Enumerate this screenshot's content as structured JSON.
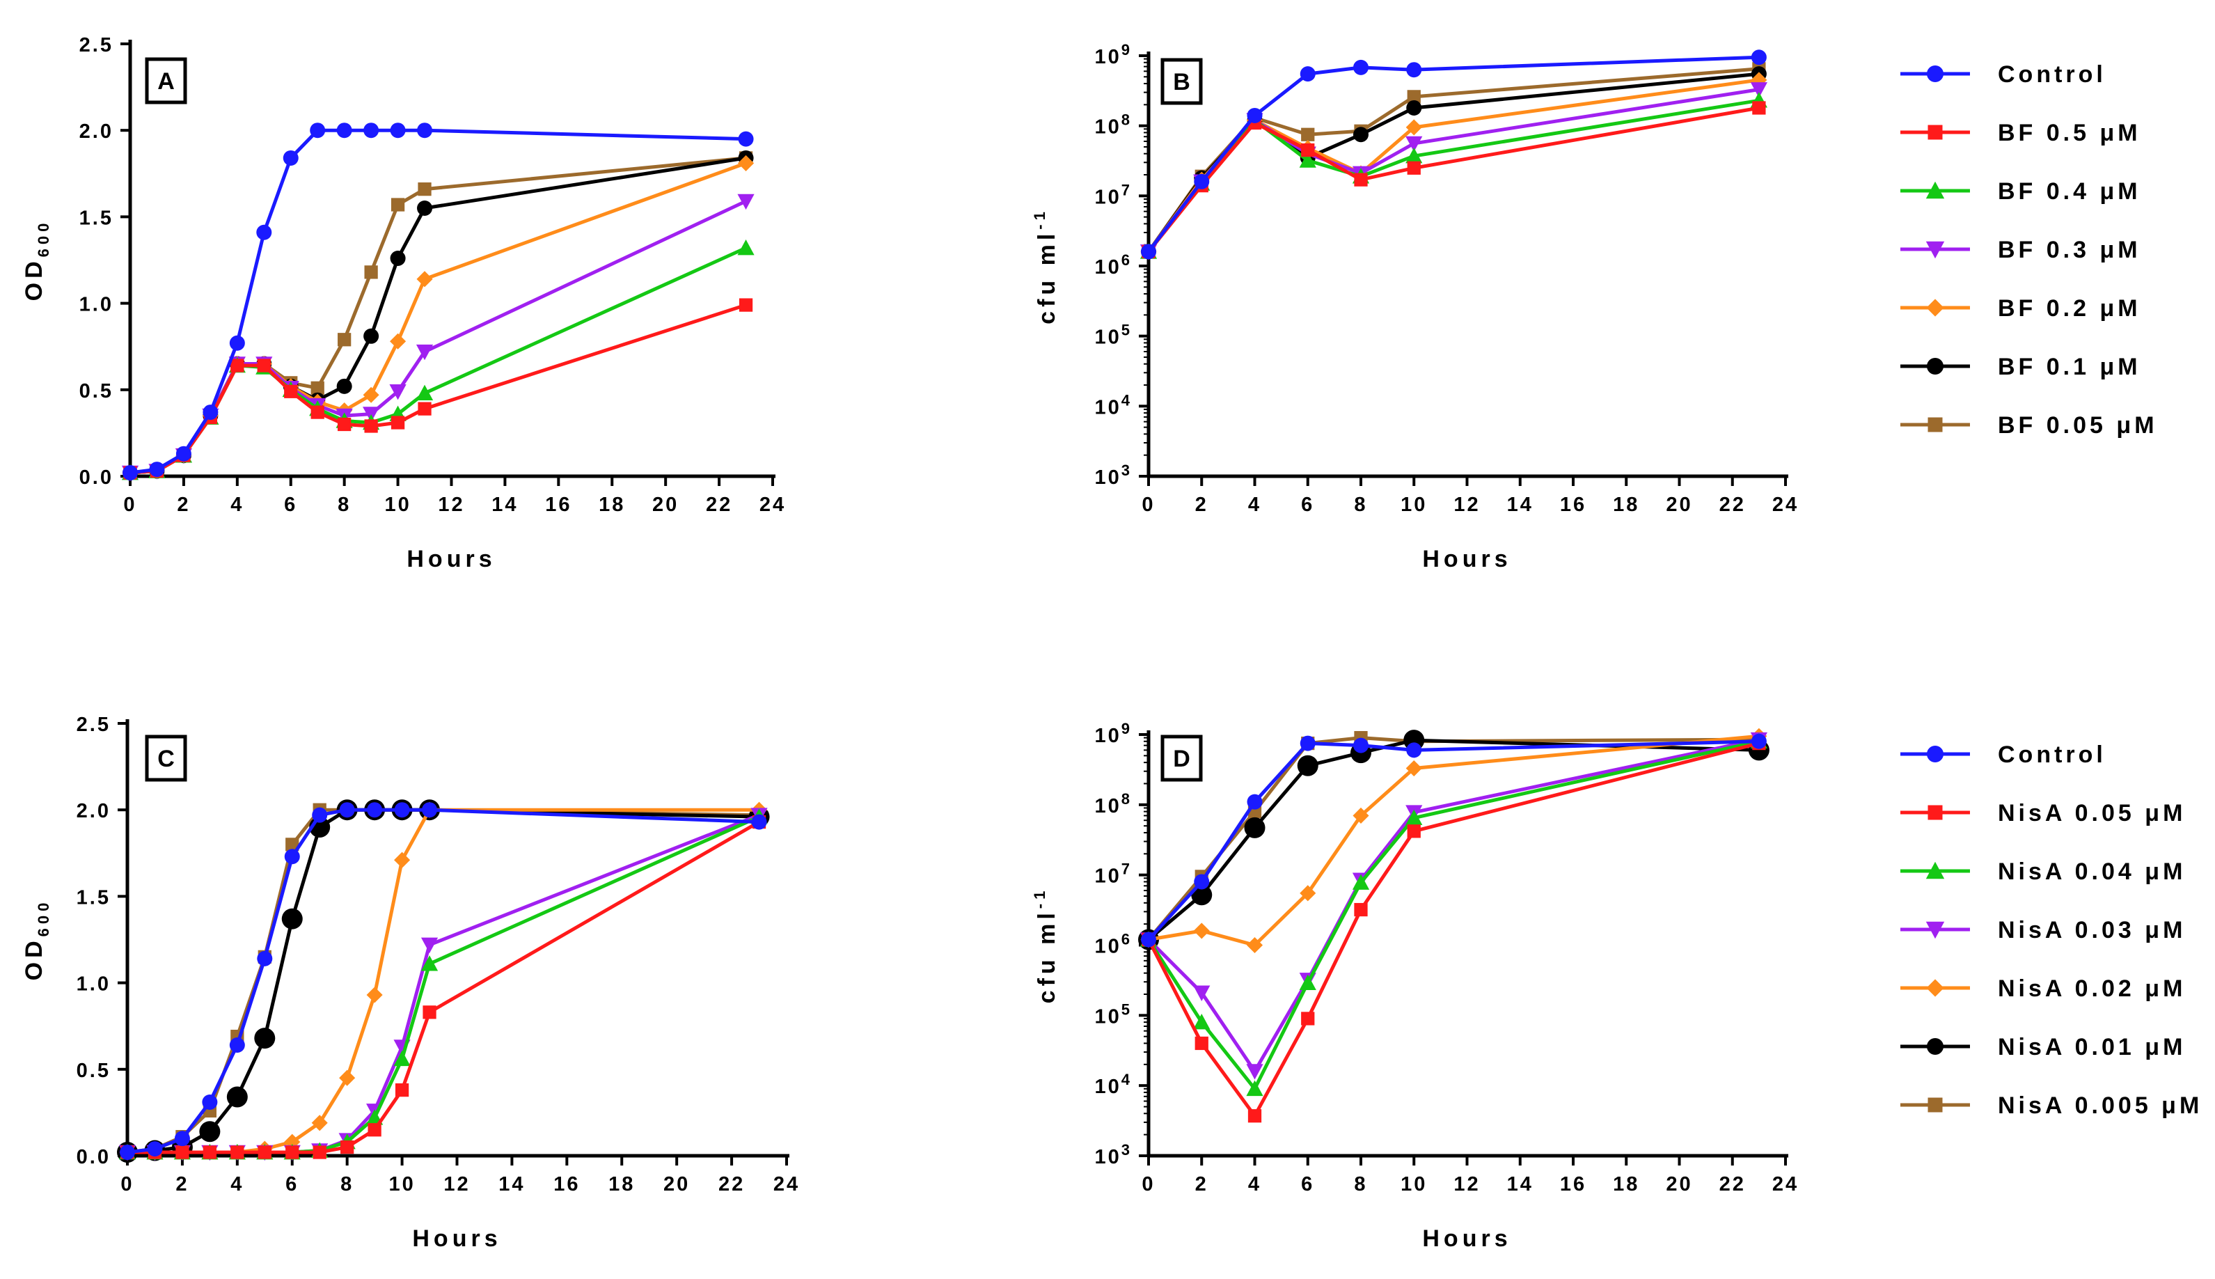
{
  "legend_top": {
    "entries": [
      {
        "label": "Control",
        "color": "#1a1aff",
        "marker": "circle"
      },
      {
        "label": "BF 0.5 μM",
        "color": "#ff1a1a",
        "marker": "square"
      },
      {
        "label": "BF 0.4 μM",
        "color": "#14c814",
        "marker": "triangle-up"
      },
      {
        "label": "BF 0.3 μM",
        "color": "#a020f0",
        "marker": "triangle-down"
      },
      {
        "label": "BF 0.2 μM",
        "color": "#ff8c1a",
        "marker": "diamond"
      },
      {
        "label": "BF 0.1 μM",
        "color": "#000000",
        "marker": "circle"
      },
      {
        "label": "BF 0.05 μM",
        "color": "#9c6a2c",
        "marker": "square"
      }
    ]
  },
  "legend_bottom": {
    "entries": [
      {
        "label": "Control",
        "color": "#1a1aff",
        "marker": "circle"
      },
      {
        "label": "NisA 0.05 μM",
        "color": "#ff1a1a",
        "marker": "square"
      },
      {
        "label": "NisA 0.04 μM",
        "color": "#14c814",
        "marker": "triangle-up"
      },
      {
        "label": "NisA 0.03 μM",
        "color": "#a020f0",
        "marker": "triangle-down"
      },
      {
        "label": "NisA 0.02 μM",
        "color": "#ff8c1a",
        "marker": "diamond"
      },
      {
        "label": "NisA 0.01 μM",
        "color": "#000000",
        "marker": "circle"
      },
      {
        "label": "NisA 0.005 μM",
        "color": "#9c6a2c",
        "marker": "square"
      }
    ]
  },
  "chart_data": [
    {
      "panel": "A",
      "type": "line",
      "xlabel": "Hours",
      "ylabel": "OD",
      "ylabel_sub": "600",
      "xlim": [
        0,
        24
      ],
      "ylim": [
        0,
        2.5
      ],
      "yscale": "linear",
      "xticks": [
        "0",
        "2",
        "4",
        "6",
        "8",
        "10",
        "12",
        "14",
        "16",
        "18",
        "20",
        "22",
        "24"
      ],
      "yticks": [
        "0.0",
        "0.5",
        "1.0",
        "1.5",
        "2.0",
        "2.5"
      ],
      "series": [
        {
          "name": "Control",
          "x": [
            0,
            1,
            2,
            3,
            4,
            5,
            6,
            7,
            8,
            9,
            10,
            11,
            23
          ],
          "y": [
            0.02,
            0.04,
            0.13,
            0.37,
            0.77,
            1.41,
            1.84,
            2.0,
            2.0,
            2.0,
            2.0,
            2.0,
            1.95
          ]
        },
        {
          "name": "BF 0.5 μM",
          "x": [
            0,
            1,
            2,
            3,
            4,
            5,
            6,
            7,
            8,
            9,
            10,
            11,
            23
          ],
          "y": [
            0.02,
            0.03,
            0.12,
            0.34,
            0.64,
            0.64,
            0.49,
            0.37,
            0.3,
            0.29,
            0.31,
            0.39,
            0.99
          ]
        },
        {
          "name": "BF 0.4 μM",
          "x": [
            0,
            1,
            2,
            3,
            4,
            5,
            6,
            7,
            8,
            9,
            10,
            11,
            23
          ],
          "y": [
            0.02,
            0.03,
            0.12,
            0.34,
            0.64,
            0.63,
            0.5,
            0.39,
            0.32,
            0.31,
            0.36,
            0.48,
            1.32
          ]
        },
        {
          "name": "BF 0.3 μM",
          "x": [
            0,
            1,
            2,
            3,
            4,
            5,
            6,
            7,
            8,
            9,
            10,
            11,
            23
          ],
          "y": [
            0.02,
            0.03,
            0.12,
            0.35,
            0.65,
            0.65,
            0.51,
            0.41,
            0.35,
            0.36,
            0.49,
            0.72,
            1.59
          ]
        },
        {
          "name": "BF 0.2 μM",
          "x": [
            0,
            1,
            2,
            3,
            4,
            5,
            6,
            7,
            8,
            9,
            10,
            11,
            23
          ],
          "y": [
            0.02,
            0.03,
            0.12,
            0.35,
            0.65,
            0.65,
            0.52,
            0.43,
            0.38,
            0.47,
            0.78,
            1.14,
            1.81
          ]
        },
        {
          "name": "BF 0.1 μM",
          "x": [
            0,
            1,
            2,
            3,
            4,
            5,
            6,
            7,
            8,
            9,
            10,
            11,
            23
          ],
          "y": [
            0.02,
            0.03,
            0.12,
            0.35,
            0.65,
            0.65,
            0.52,
            0.44,
            0.52,
            0.81,
            1.26,
            1.55,
            1.84
          ]
        },
        {
          "name": "BF 0.05 μM",
          "x": [
            0,
            1,
            2,
            3,
            4,
            5,
            6,
            7,
            8,
            9,
            10,
            11,
            23
          ],
          "y": [
            0.02,
            0.03,
            0.12,
            0.35,
            0.65,
            0.65,
            0.54,
            0.51,
            0.79,
            1.18,
            1.57,
            1.66,
            1.84
          ]
        }
      ]
    },
    {
      "panel": "B",
      "type": "line",
      "xlabel": "Hours",
      "ylabel": "cfu ml",
      "ylabel_sup": "-1",
      "xlim": [
        0,
        24
      ],
      "ylim": [
        1000,
        1000000000
      ],
      "yscale": "log",
      "xticks": [
        "0",
        "2",
        "4",
        "6",
        "8",
        "10",
        "12",
        "14",
        "16",
        "18",
        "20",
        "22",
        "24"
      ],
      "ytick_base": "10",
      "ytick_exps": [
        "3",
        "4",
        "5",
        "6",
        "7",
        "8",
        "9"
      ],
      "series": [
        {
          "name": "Control",
          "x": [
            0,
            2,
            4,
            6,
            8,
            10,
            23
          ],
          "y": [
            1600000.0,
            16000000.0,
            140000000.0,
            550000000.0,
            680000000.0,
            630000000.0,
            950000000.0
          ]
        },
        {
          "name": "BF 0.5 μM",
          "x": [
            0,
            2,
            4,
            6,
            8,
            10,
            23
          ],
          "y": [
            1600000.0,
            14000000.0,
            110000000.0,
            45000000.0,
            17000000.0,
            25000000.0,
            180000000.0
          ]
        },
        {
          "name": "BF 0.4 μM",
          "x": [
            0,
            2,
            4,
            6,
            8,
            10,
            23
          ],
          "y": [
            1600000.0,
            15000000.0,
            120000000.0,
            32000000.0,
            19000000.0,
            37000000.0,
            230000000.0
          ]
        },
        {
          "name": "BF 0.3 μM",
          "x": [
            0,
            2,
            4,
            6,
            8,
            10,
            23
          ],
          "y": [
            1600000.0,
            16000000.0,
            120000000.0,
            40000000.0,
            21000000.0,
            56000000.0,
            330000000.0
          ]
        },
        {
          "name": "BF 0.2 μM",
          "x": [
            0,
            2,
            4,
            6,
            8,
            10,
            23
          ],
          "y": [
            1600000.0,
            17000000.0,
            120000000.0,
            48000000.0,
            21000000.0,
            95000000.0,
            450000000.0
          ]
        },
        {
          "name": "BF 0.1 μM",
          "x": [
            0,
            2,
            4,
            6,
            8,
            10,
            23
          ],
          "y": [
            1600000.0,
            18000000.0,
            120000000.0,
            35000000.0,
            75000000.0,
            180000000.0,
            550000000.0
          ]
        },
        {
          "name": "BF 0.05 μM",
          "x": [
            0,
            2,
            4,
            6,
            8,
            10,
            23
          ],
          "y": [
            1600000.0,
            19000000.0,
            130000000.0,
            75000000.0,
            84000000.0,
            260000000.0,
            650000000.0
          ]
        }
      ]
    },
    {
      "panel": "C",
      "type": "line",
      "xlabel": "Hours",
      "ylabel": "OD",
      "ylabel_sub": "600",
      "xlim": [
        0,
        24
      ],
      "ylim": [
        0,
        2.5
      ],
      "yscale": "linear",
      "xticks": [
        "0",
        "2",
        "4",
        "6",
        "8",
        "10",
        "12",
        "14",
        "16",
        "18",
        "20",
        "22",
        "24"
      ],
      "yticks": [
        "0.0",
        "0.5",
        "1.0",
        "1.5",
        "2.0",
        "2.5"
      ],
      "series": [
        {
          "name": "Control",
          "x": [
            0,
            1,
            2,
            3,
            4,
            5,
            6,
            7,
            8,
            9,
            10,
            11,
            23
          ],
          "y": [
            0.02,
            0.04,
            0.1,
            0.31,
            0.64,
            1.14,
            1.73,
            1.97,
            2.0,
            2.0,
            2.0,
            2.0,
            1.93
          ]
        },
        {
          "name": "NisA 0.05 μM",
          "x": [
            0,
            1,
            2,
            3,
            4,
            5,
            6,
            7,
            8,
            9,
            10,
            11,
            23
          ],
          "y": [
            0.02,
            0.02,
            0.02,
            0.02,
            0.02,
            0.02,
            0.02,
            0.02,
            0.05,
            0.15,
            0.38,
            0.83,
            1.93
          ]
        },
        {
          "name": "NisA 0.04 μM",
          "x": [
            0,
            1,
            2,
            3,
            4,
            5,
            6,
            7,
            8,
            9,
            10,
            11,
            23
          ],
          "y": [
            0.02,
            0.02,
            0.02,
            0.02,
            0.02,
            0.02,
            0.02,
            0.03,
            0.08,
            0.22,
            0.56,
            1.11,
            1.96
          ]
        },
        {
          "name": "NisA 0.03 μM",
          "x": [
            0,
            1,
            2,
            3,
            4,
            5,
            6,
            7,
            8,
            9,
            10,
            11,
            23
          ],
          "y": [
            0.02,
            0.02,
            0.02,
            0.02,
            0.02,
            0.02,
            0.02,
            0.03,
            0.09,
            0.26,
            0.63,
            1.22,
            1.97
          ]
        },
        {
          "name": "NisA 0.02 μM",
          "x": [
            0,
            1,
            2,
            3,
            4,
            5,
            6,
            7,
            8,
            9,
            10,
            11,
            23
          ],
          "y": [
            0.02,
            0.02,
            0.02,
            0.02,
            0.02,
            0.04,
            0.08,
            0.19,
            0.45,
            0.93,
            1.71,
            2.0,
            2.0
          ]
        },
        {
          "name": "NisA 0.01 μM",
          "x": [
            0,
            1,
            2,
            3,
            4,
            5,
            6,
            7,
            8,
            9,
            10,
            11,
            23
          ],
          "y": [
            0.02,
            0.03,
            0.05,
            0.14,
            0.34,
            0.68,
            1.37,
            1.9,
            2.0,
            2.0,
            2.0,
            2.0,
            1.96
          ]
        },
        {
          "name": "NisA 0.005 μM",
          "x": [
            0,
            1,
            2,
            3,
            4,
            5,
            6,
            7,
            8,
            9,
            10,
            11,
            23
          ],
          "y": [
            0.02,
            0.04,
            0.11,
            0.26,
            0.69,
            1.15,
            1.8,
            2.0,
            2.0,
            2.0,
            2.0,
            2.0,
            1.97
          ]
        }
      ]
    },
    {
      "panel": "D",
      "type": "line",
      "xlabel": "Hours",
      "ylabel": "cfu ml",
      "ylabel_sup": "-1",
      "xlim": [
        0,
        24
      ],
      "ylim": [
        1000,
        1000000000
      ],
      "yscale": "log",
      "xticks": [
        "0",
        "2",
        "4",
        "6",
        "8",
        "10",
        "12",
        "14",
        "16",
        "18",
        "20",
        "22",
        "24"
      ],
      "ytick_base": "10",
      "ytick_exps": [
        "3",
        "4",
        "5",
        "6",
        "7",
        "8",
        "9"
      ],
      "series": [
        {
          "name": "Control",
          "x": [
            0,
            2,
            4,
            6,
            8,
            10,
            23
          ],
          "y": [
            1200000.0,
            8000000.0,
            110000000.0,
            750000000.0,
            700000000.0,
            600000000.0,
            800000000.0
          ]
        },
        {
          "name": "NisA 0.05 μM",
          "x": [
            0,
            2,
            4,
            6,
            8,
            10,
            23
          ],
          "y": [
            1200000.0,
            40000.0,
            3700.0,
            90000.0,
            3200000.0,
            42000000.0,
            750000000.0
          ]
        },
        {
          "name": "NisA 0.04 μM",
          "x": [
            0,
            2,
            4,
            6,
            8,
            10,
            23
          ],
          "y": [
            1200000.0,
            80000.0,
            9000.0,
            290000.0,
            7800000.0,
            65000000.0,
            800000000.0
          ]
        },
        {
          "name": "NisA 0.03 μM",
          "x": [
            0,
            2,
            4,
            6,
            8,
            10,
            23
          ],
          "y": [
            1200000.0,
            210000.0,
            16000.0,
            320000.0,
            8500000.0,
            78000000.0,
            850000000.0
          ]
        },
        {
          "name": "NisA 0.02 μM",
          "x": [
            0,
            2,
            4,
            6,
            8,
            10,
            23
          ],
          "y": [
            1200000.0,
            1600000.0,
            1000000.0,
            5500000.0,
            70000000.0,
            330000000.0,
            950000000.0
          ]
        },
        {
          "name": "NisA 0.01 μM",
          "x": [
            0,
            2,
            4,
            6,
            8,
            10,
            23
          ],
          "y": [
            1200000.0,
            5200000.0,
            47000000.0,
            360000000.0,
            550000000.0,
            830000000.0,
            600000000.0
          ]
        },
        {
          "name": "NisA 0.005 μM",
          "x": [
            0,
            2,
            4,
            6,
            8,
            10,
            23
          ],
          "y": [
            1200000.0,
            9500000.0,
            80000000.0,
            750000000.0,
            900000000.0,
            800000000.0,
            850000000.0
          ]
        }
      ]
    }
  ]
}
